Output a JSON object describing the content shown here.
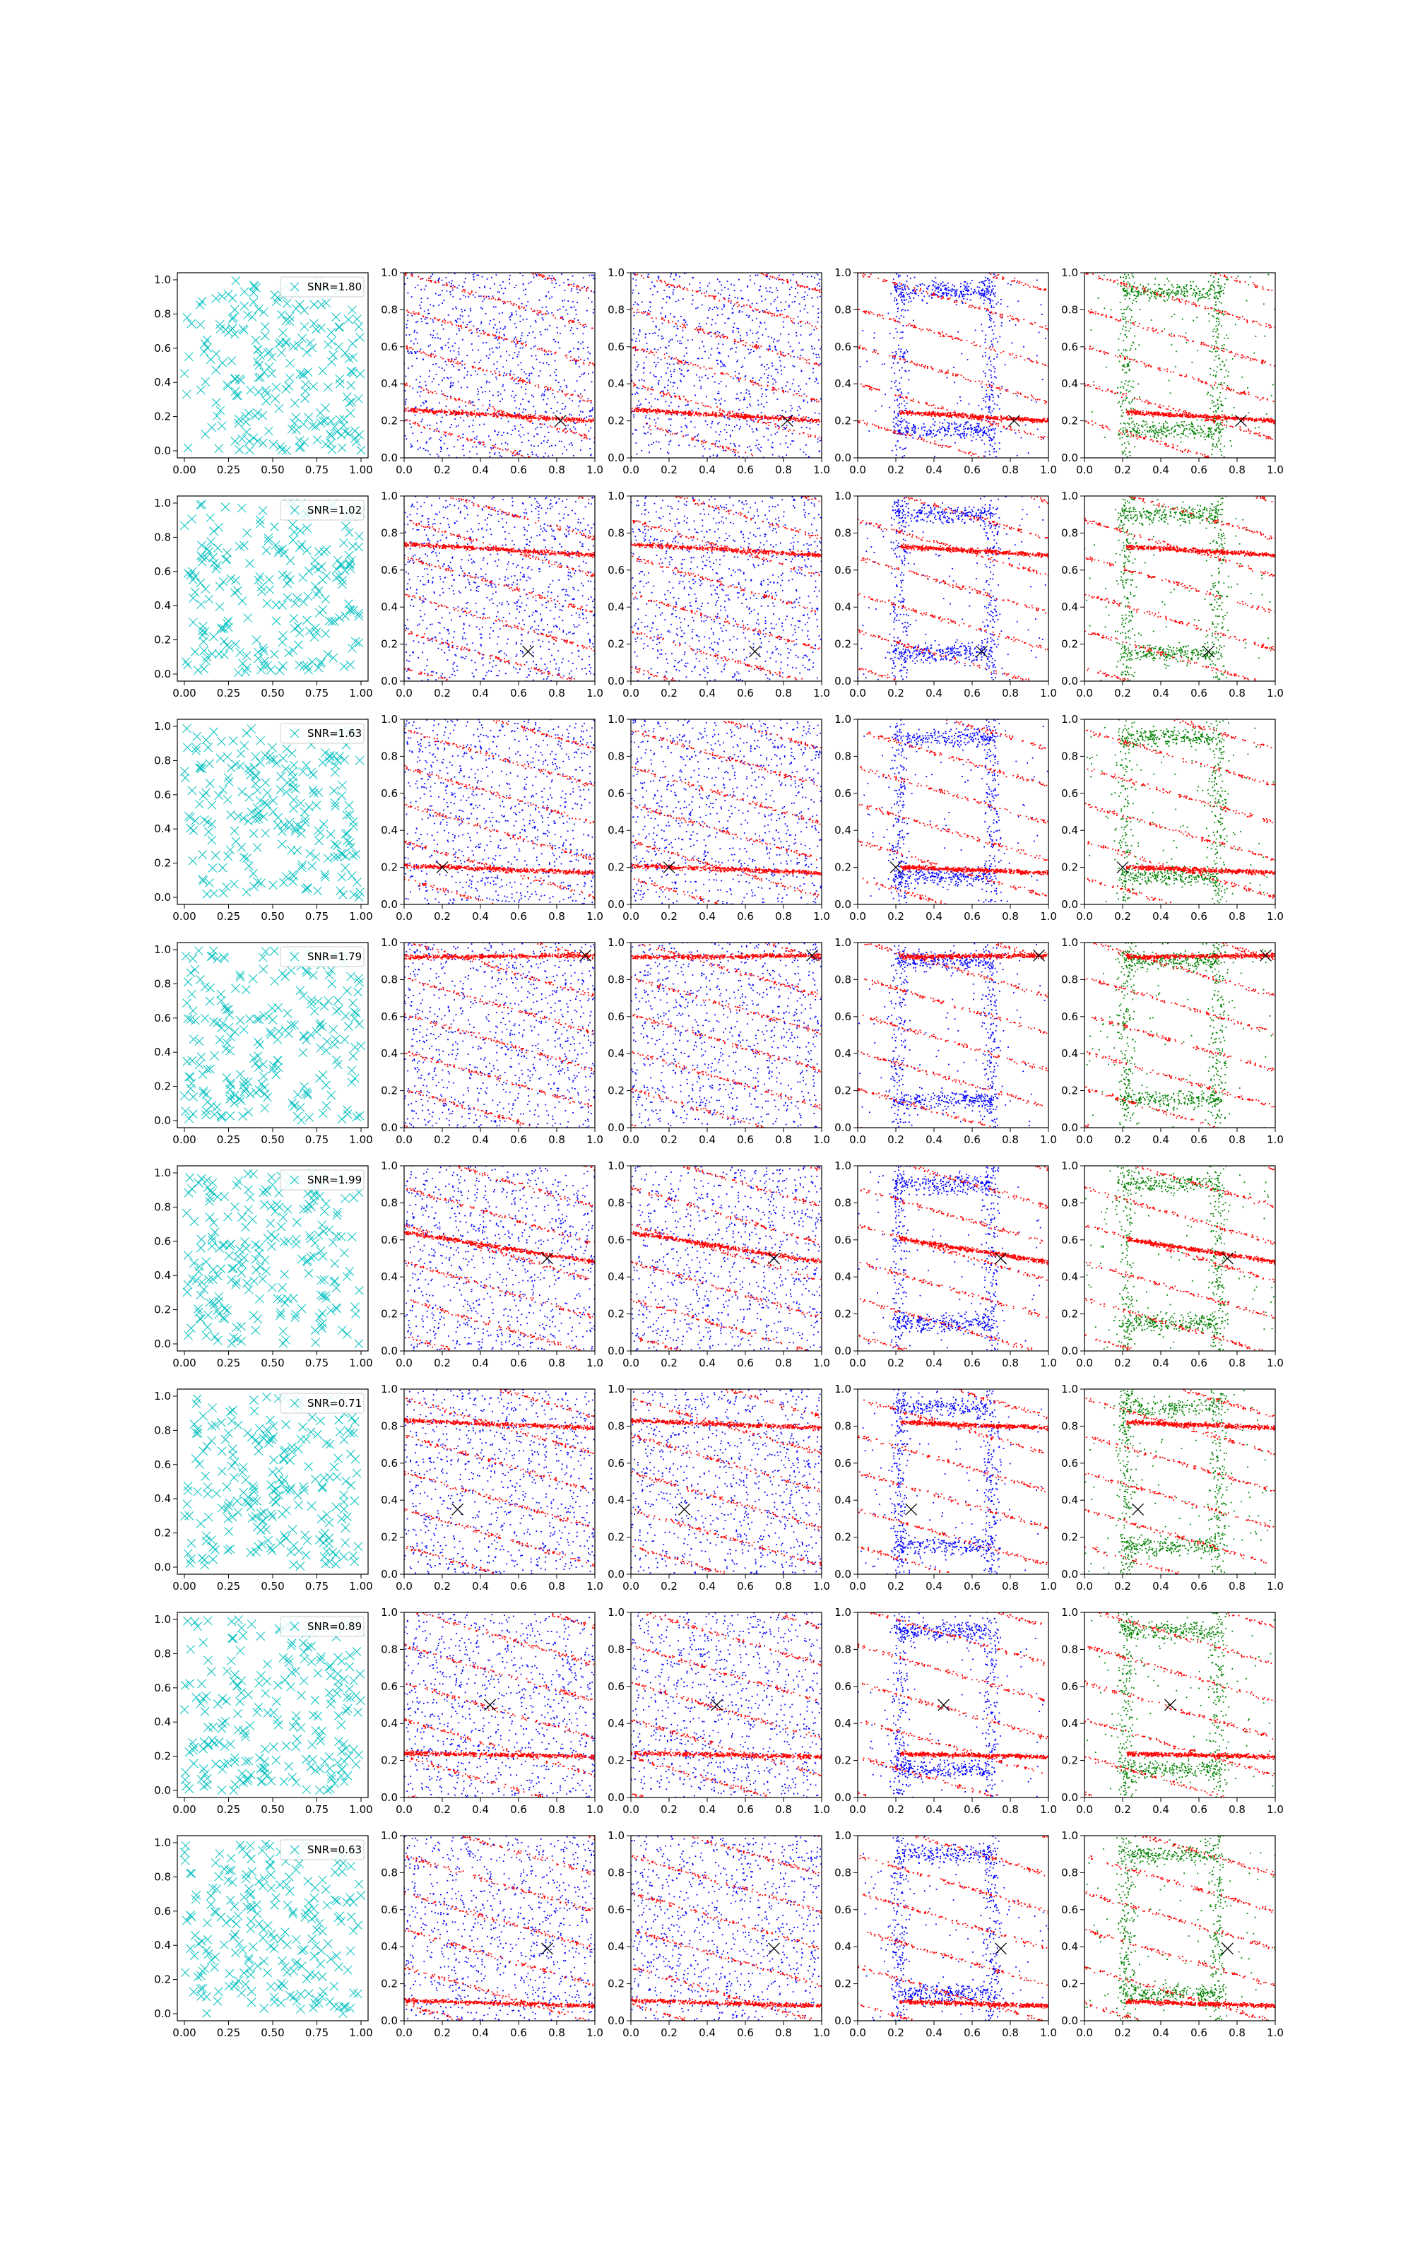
{
  "figure": {
    "rows": 8,
    "cols": 5
  },
  "colors": {
    "noise_marker": "#00bfbf",
    "points_a": "#ff0000",
    "points_b": "#0000ff",
    "points_c": "#008000",
    "target_marker": "#000000"
  },
  "axes": {
    "col0": {
      "xticks": [
        "0.00",
        "0.25",
        "0.50",
        "0.75",
        "1.00"
      ],
      "yticks": [
        "0.0",
        "0.2",
        "0.4",
        "0.6",
        "0.8",
        "1.0"
      ]
    },
    "cols1to4": {
      "xticks": [
        "0.0",
        "0.2",
        "0.4",
        "0.6",
        "0.8",
        "1.0"
      ],
      "yticks": [
        "0.0",
        "0.2",
        "0.4",
        "0.6",
        "0.8",
        "1.0"
      ]
    }
  },
  "chart_data": [
    {
      "row": 1,
      "type": "scatter",
      "legend": "SNR=1.80",
      "target": [
        0.82,
        0.2
      ],
      "band": {
        "y0": 0.26,
        "y1": 0.2
      }
    },
    {
      "row": 2,
      "type": "scatter",
      "legend": "SNR=1.02",
      "target": [
        0.65,
        0.16
      ],
      "band": {
        "y0": 0.74,
        "y1": 0.68
      }
    },
    {
      "row": 3,
      "type": "scatter",
      "legend": "SNR=1.63",
      "target": [
        0.2,
        0.2
      ],
      "band": {
        "y0": 0.21,
        "y1": 0.17
      }
    },
    {
      "row": 4,
      "type": "scatter",
      "legend": "SNR=1.79",
      "target": [
        0.95,
        0.93
      ],
      "band": {
        "y0": 0.92,
        "y1": 0.93
      }
    },
    {
      "row": 5,
      "type": "scatter",
      "legend": "SNR=1.99",
      "target": [
        0.75,
        0.5
      ],
      "band": {
        "y0": 0.64,
        "y1": 0.48
      }
    },
    {
      "row": 6,
      "type": "scatter",
      "legend": "SNR=0.71",
      "target": [
        0.28,
        0.35
      ],
      "band": {
        "y0": 0.83,
        "y1": 0.79
      }
    },
    {
      "row": 7,
      "type": "scatter",
      "legend": "SNR=0.89",
      "target": [
        0.45,
        0.5
      ],
      "band": {
        "y0": 0.24,
        "y1": 0.22
      }
    },
    {
      "row": 8,
      "type": "scatter",
      "legend": "SNR=0.63",
      "target": [
        0.75,
        0.39
      ],
      "band": {
        "y0": 0.11,
        "y1": 0.08
      }
    }
  ]
}
